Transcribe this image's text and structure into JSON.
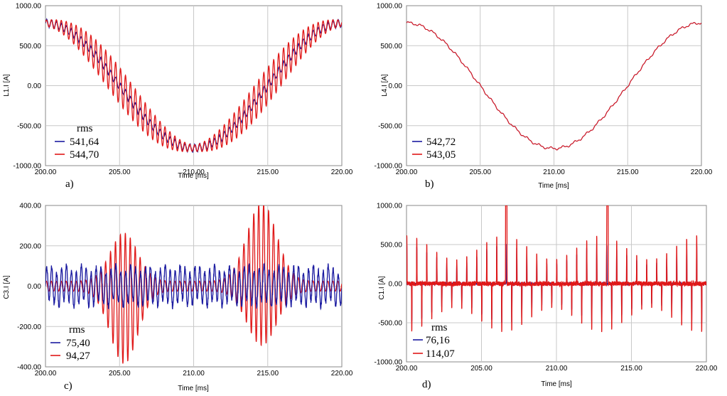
{
  "colors": {
    "blue": "#1a1aa0",
    "red": "#e01818",
    "grid": "#c8c8c8",
    "frame": "#888888"
  },
  "chart_data": [
    {
      "panel": "a)",
      "type": "line",
      "ylabel": "L1.I [A]",
      "xlabel": "Time [ms]",
      "xlim": [
        200,
        220
      ],
      "ylim": [
        -1000,
        1000
      ],
      "x_ticks": [
        "200.00",
        "205.00",
        "210.00",
        "215.00",
        "220.00"
      ],
      "y_ticks": [
        "1000.00",
        "500.00",
        "0.00",
        "-500.00",
        "-1000.00"
      ],
      "grid": true,
      "legend": {
        "title": "rms",
        "placement": "bottom-left"
      },
      "series": [
        {
          "name": "541,64",
          "color": "#1a1aa0",
          "amplitude": 780,
          "ripple": 50,
          "ripple_freq": 3.0
        },
        {
          "name": "544,70",
          "color": "#e01818",
          "amplitude": 780,
          "ripple": 170,
          "ripple_freq": 3.0,
          "ripple_envelope": "zero-crossings"
        }
      ]
    },
    {
      "panel": "b)",
      "type": "line",
      "ylabel": "L4.I [A]",
      "xlabel": "Time [ms]",
      "xlim": [
        200,
        220
      ],
      "ylim": [
        -1000,
        1000
      ],
      "x_ticks": [
        "200.00",
        "205.00",
        "210.00",
        "215.00",
        "220.00"
      ],
      "y_ticks": [
        "1000.00",
        "500.00",
        "0.00",
        "-500.00",
        "-1000.00"
      ],
      "grid": true,
      "legend": {
        "title": "",
        "placement": "bottom-left"
      },
      "series": [
        {
          "name": "542,72",
          "color": "#1a1aa0",
          "amplitude": 780,
          "ripple": 18,
          "ripple_freq": 1.2
        },
        {
          "name": "543,05",
          "color": "#e01818",
          "amplitude": 780,
          "ripple": 18,
          "ripple_freq": 1.2
        }
      ]
    },
    {
      "panel": "c)",
      "type": "line",
      "ylabel": "C3.I [A]",
      "xlabel": "Time [ms]",
      "xlim": [
        200,
        220
      ],
      "ylim": [
        -400,
        400
      ],
      "x_ticks": [
        "200.00",
        "205.00",
        "210.00",
        "215.00",
        "220.00"
      ],
      "y_ticks": [
        "400.00",
        "200.00",
        "0.00",
        "-200.00",
        "-400.00"
      ],
      "grid": true,
      "legend": {
        "title": "rms",
        "placement": "bottom-left"
      },
      "series": [
        {
          "name": "75,40",
          "color": "#1a1aa0",
          "amplitude": 90,
          "ripple_freq": 3.0
        },
        {
          "name": "94,27",
          "color": "#e01818",
          "amplitude": 350,
          "ripple_freq": 3.0,
          "bursts_at_ms": [
            205,
            215
          ]
        }
      ]
    },
    {
      "panel": "d)",
      "type": "line",
      "ylabel": "C1.I [A]",
      "xlabel": "Time [ms]",
      "xlim": [
        200,
        220
      ],
      "ylim": [
        -1000,
        1000
      ],
      "x_ticks": [
        "200.00",
        "205.00",
        "210.00",
        "215.00",
        "220.00"
      ],
      "y_ticks": [
        "1000.00",
        "500.00",
        "0.00",
        "-500.00",
        "-1000.00"
      ],
      "grid": true,
      "legend": {
        "title": "rms",
        "placement": "bottom-left"
      },
      "series": [
        {
          "name": "76,16",
          "color": "#1a1aa0",
          "spike_amplitude": 500,
          "ripple_freq": 3.0
        },
        {
          "name": "114,07",
          "color": "#e01818",
          "spike_amplitude": 650,
          "ripple_freq": 3.0
        }
      ]
    }
  ]
}
